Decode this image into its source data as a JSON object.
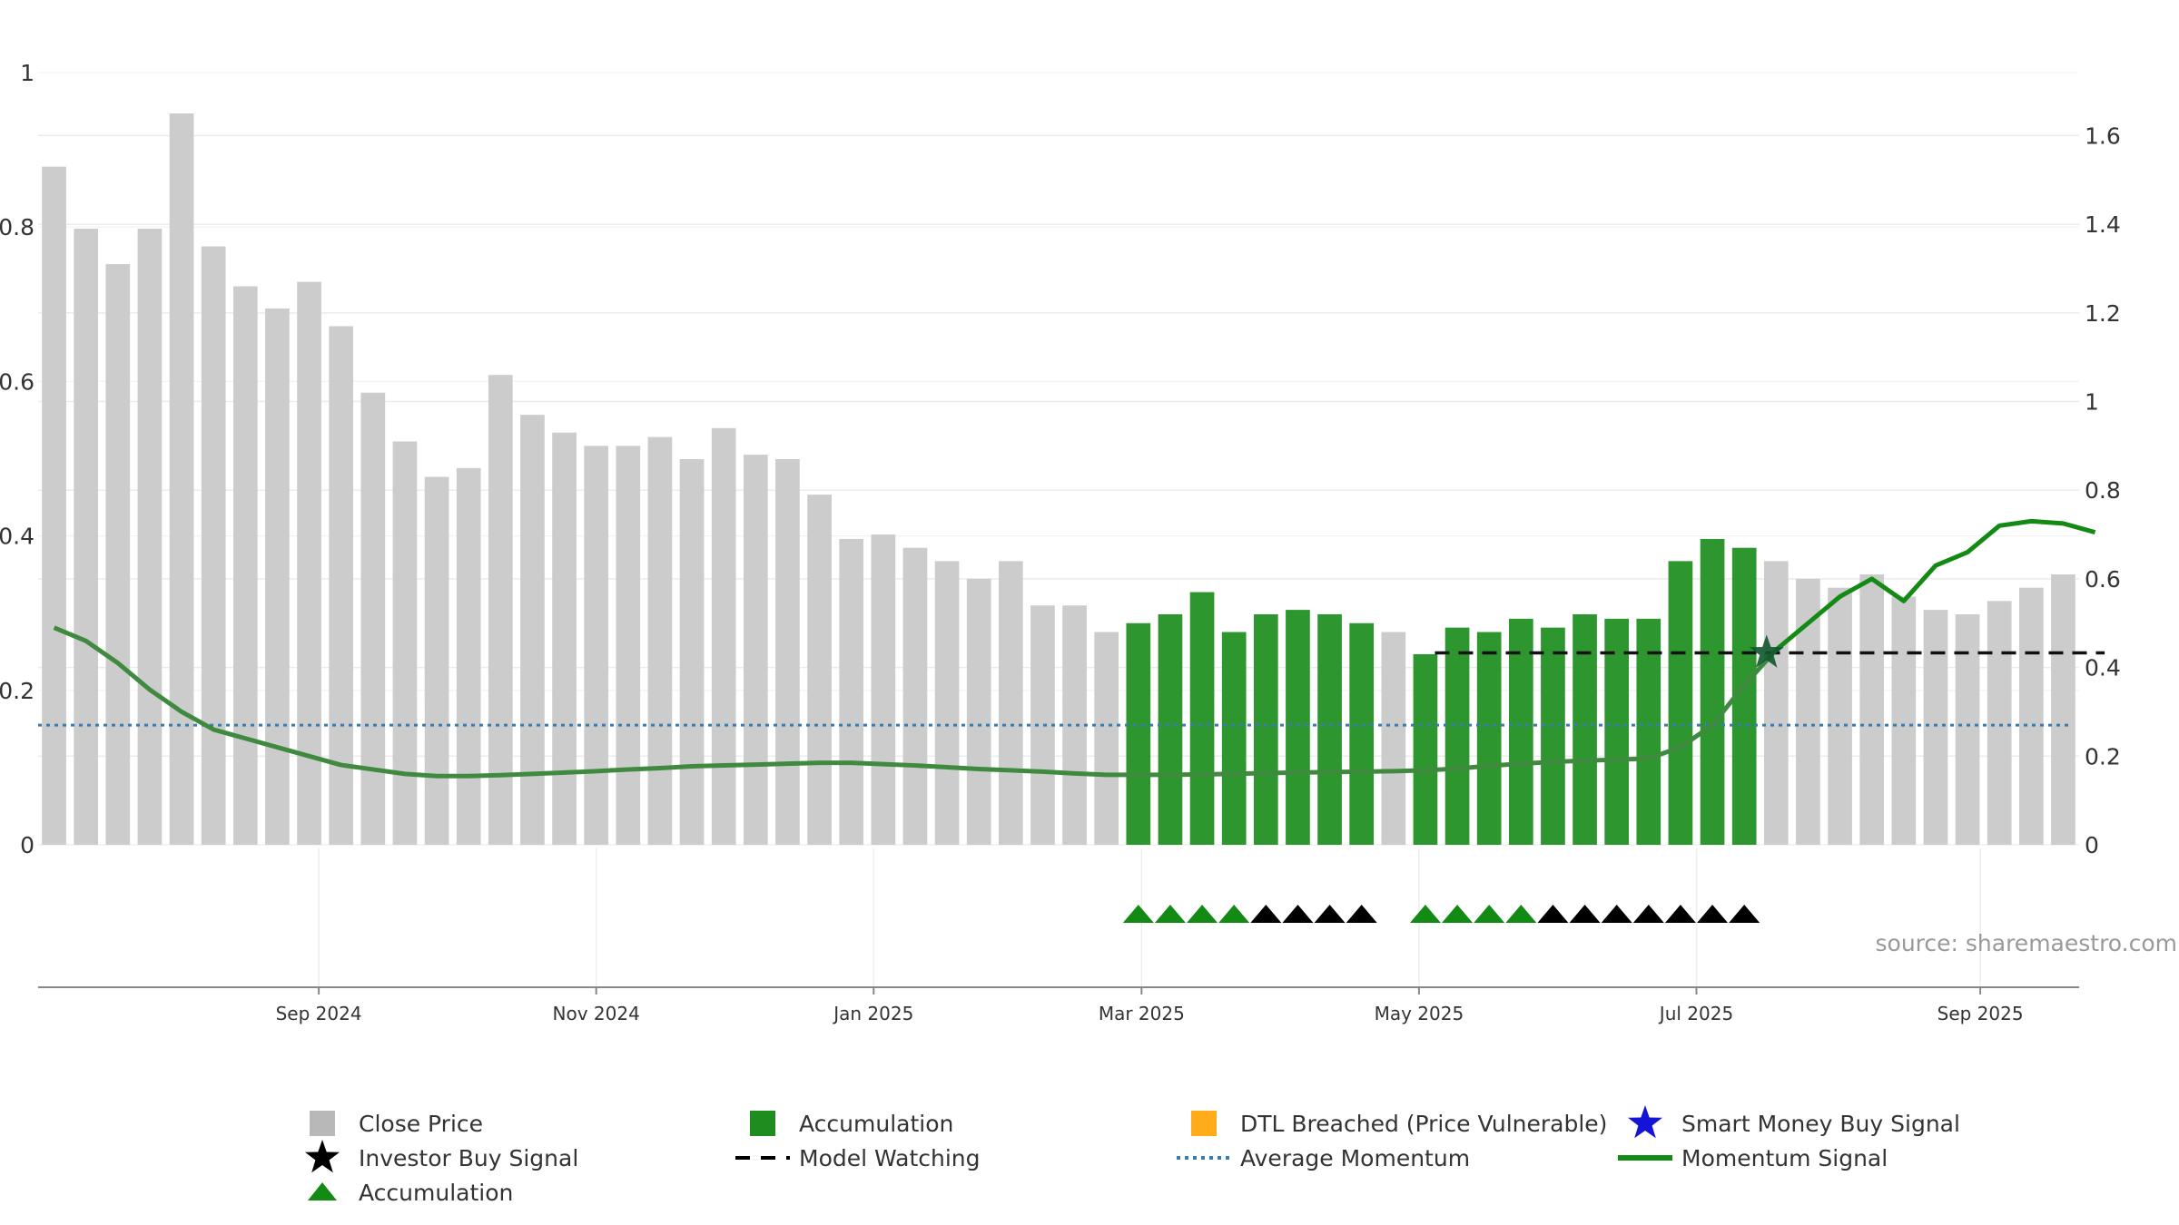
{
  "chart_data": {
    "type": "bar",
    "source": "source: sharemaestro.com",
    "left_axis": {
      "ticks": [
        "0",
        "0.2",
        "0.4",
        "0.6",
        "0.8",
        "1"
      ],
      "ylim": [
        0,
        1
      ]
    },
    "right_axis": {
      "ticks": [
        "0",
        "0.2",
        "0.4",
        "0.6",
        "0.8",
        "1",
        "1.2",
        "1.4",
        "1.6"
      ],
      "ylim": [
        0,
        1.65
      ]
    },
    "x_ticks": [
      {
        "label": "Sep 2024",
        "week": 8.3
      },
      {
        "label": "Nov 2024",
        "week": 17.0
      },
      {
        "label": "Jan 2025",
        "week": 25.7
      },
      {
        "label": "Mar 2025",
        "week": 34.1
      },
      {
        "label": "May 2025",
        "week": 42.8
      },
      {
        "label": "Jul 2025",
        "week": 51.5
      },
      {
        "label": "Sep 2025",
        "week": 60.4
      }
    ],
    "close_price": [
      1.53,
      1.39,
      1.31,
      1.39,
      1.65,
      1.35,
      1.26,
      1.21,
      1.27,
      1.17,
      1.02,
      0.91,
      0.83,
      0.85,
      1.06,
      0.97,
      0.93,
      0.9,
      0.9,
      0.92,
      0.87,
      0.94,
      0.88,
      0.87,
      0.79,
      0.69,
      0.7,
      0.67,
      0.64,
      0.6,
      0.64,
      0.54,
      0.54,
      0.48,
      0.5,
      0.52,
      0.57,
      0.48,
      0.52,
      0.53,
      0.52,
      0.5,
      0.48,
      0.43,
      0.49,
      0.48,
      0.51,
      0.49,
      0.52,
      0.51,
      0.51,
      0.64,
      0.69,
      0.67,
      0.64,
      0.6,
      0.58,
      0.61,
      0.56,
      0.53,
      0.52,
      0.55,
      0.58,
      0.61
    ],
    "accumulation_weeks": [
      34,
      35,
      36,
      37,
      38,
      39,
      40,
      41,
      43,
      44,
      45,
      46,
      47,
      48,
      49,
      50,
      51,
      52,
      53
    ],
    "accumulation_color": "#2e962e",
    "price_color": "#cccccc",
    "triangles": [
      {
        "week": 34,
        "color": "green"
      },
      {
        "week": 35,
        "color": "green"
      },
      {
        "week": 36,
        "color": "green"
      },
      {
        "week": 37,
        "color": "green"
      },
      {
        "week": 38,
        "color": "black"
      },
      {
        "week": 39,
        "color": "black"
      },
      {
        "week": 40,
        "color": "black"
      },
      {
        "week": 41,
        "color": "black"
      },
      {
        "week": 43,
        "color": "green"
      },
      {
        "week": 44,
        "color": "green"
      },
      {
        "week": 45,
        "color": "green"
      },
      {
        "week": 46,
        "color": "green"
      },
      {
        "week": 47,
        "color": "black"
      },
      {
        "week": 48,
        "color": "black"
      },
      {
        "week": 49,
        "color": "black"
      },
      {
        "week": 50,
        "color": "black"
      },
      {
        "week": 51,
        "color": "black"
      },
      {
        "week": 52,
        "color": "black"
      },
      {
        "week": 53,
        "color": "black"
      }
    ],
    "momentum": [
      [
        0,
        0.49
      ],
      [
        1,
        0.46
      ],
      [
        2,
        0.41
      ],
      [
        3,
        0.35
      ],
      [
        4,
        0.3
      ],
      [
        5,
        0.26
      ],
      [
        6,
        0.24
      ],
      [
        7,
        0.22
      ],
      [
        8,
        0.2
      ],
      [
        9,
        0.18
      ],
      [
        10,
        0.17
      ],
      [
        11,
        0.16
      ],
      [
        12,
        0.155
      ],
      [
        13,
        0.155
      ],
      [
        14,
        0.157
      ],
      [
        15,
        0.16
      ],
      [
        16,
        0.163
      ],
      [
        17,
        0.166
      ],
      [
        18,
        0.17
      ],
      [
        19,
        0.173
      ],
      [
        20,
        0.177
      ],
      [
        21,
        0.179
      ],
      [
        22,
        0.181
      ],
      [
        23,
        0.183
      ],
      [
        24,
        0.185
      ],
      [
        25,
        0.185
      ],
      [
        26,
        0.182
      ],
      [
        27,
        0.179
      ],
      [
        28,
        0.175
      ],
      [
        29,
        0.171
      ],
      [
        30,
        0.168
      ],
      [
        31,
        0.165
      ],
      [
        32,
        0.161
      ],
      [
        33,
        0.158
      ],
      [
        34,
        0.158
      ],
      [
        35,
        0.158
      ],
      [
        36,
        0.159
      ],
      [
        37,
        0.16
      ],
      [
        38,
        0.162
      ],
      [
        39,
        0.163
      ],
      [
        40,
        0.164
      ],
      [
        41,
        0.165
      ],
      [
        42,
        0.166
      ],
      [
        43,
        0.168
      ],
      [
        44,
        0.172
      ],
      [
        45,
        0.178
      ],
      [
        46,
        0.183
      ],
      [
        47,
        0.187
      ],
      [
        48,
        0.19
      ],
      [
        49,
        0.192
      ],
      [
        50,
        0.195
      ],
      [
        51,
        0.22
      ],
      [
        52,
        0.27
      ],
      [
        53,
        0.36
      ],
      [
        54,
        0.44
      ],
      [
        55,
        0.5
      ],
      [
        56,
        0.56
      ],
      [
        57,
        0.6
      ],
      [
        58,
        0.55
      ],
      [
        59,
        0.63
      ],
      [
        60,
        0.66
      ],
      [
        61,
        0.72
      ],
      [
        62,
        0.73
      ],
      [
        63,
        0.725
      ],
      [
        64,
        0.705
      ]
    ],
    "momentum_faded_until_week": 54,
    "average_momentum": 0.27,
    "model_watching": {
      "from_week": 43.3,
      "to_week": 64.3,
      "value": 0.433
    },
    "smart_money_buy_signal": {
      "week": 53.7,
      "value": 0.433
    },
    "legend": [
      {
        "label": "Close Price",
        "marker": "square",
        "color": "#b8b8b8"
      },
      {
        "label": "Accumulation",
        "marker": "square",
        "color": "#1f8c1f"
      },
      {
        "label": "DTL Breached (Price Vulnerable)",
        "marker": "square",
        "color": "#ffab1a"
      },
      {
        "label": "Smart Money Buy Signal",
        "marker": "star",
        "color": "#1414d6"
      },
      {
        "label": "Investor Buy Signal",
        "marker": "star",
        "color": "#000000"
      },
      {
        "label": "Model Watching",
        "marker": "dash",
        "color": "#000000"
      },
      {
        "label": "Average Momentum",
        "marker": "dot",
        "color": "#3a7bb0"
      },
      {
        "label": "Momentum Signal",
        "marker": "line",
        "color": "#138a13"
      },
      {
        "label": "Accumulation",
        "marker": "triangle",
        "color": "#138a13"
      }
    ]
  }
}
